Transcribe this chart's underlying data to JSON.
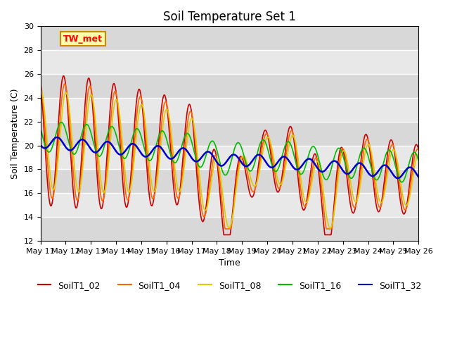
{
  "title": "Soil Temperature Set 1",
  "xlabel": "Time",
  "ylabel": "Soil Temperature (C)",
  "ylim": [
    12,
    30
  ],
  "yticks": [
    12,
    14,
    16,
    18,
    20,
    22,
    24,
    26,
    28,
    30
  ],
  "bg_color": "#e8e8e8",
  "series": {
    "SoilT1_02": {
      "color": "#cc0000",
      "lw": 1.2
    },
    "SoilT1_04": {
      "color": "#ff6600",
      "lw": 1.2
    },
    "SoilT1_08": {
      "color": "#ddcc00",
      "lw": 1.2
    },
    "SoilT1_16": {
      "color": "#00bb00",
      "lw": 1.2
    },
    "SoilT1_32": {
      "color": "#0000cc",
      "lw": 1.8
    }
  },
  "annotation": {
    "text": "TW_met",
    "fontsize": 9,
    "bbox_facecolor": "#ffffaa",
    "bbox_edgecolor": "#cc8800"
  },
  "xtick_labels": [
    "May 11",
    "May 12",
    "May 13",
    "May 14",
    "May 15",
    "May 16",
    "May 17",
    "May 18",
    "May 19",
    "May 20",
    "May 21",
    "May 22",
    "May 23",
    "May 24",
    "May 25",
    "May 26"
  ],
  "legend_labels": [
    "SoilT1_02",
    "SoilT1_04",
    "SoilT1_08",
    "SoilT1_16",
    "SoilT1_32"
  ],
  "legend_colors": [
    "#cc0000",
    "#ff6600",
    "#ddcc00",
    "#00bb00",
    "#0000cc"
  ]
}
